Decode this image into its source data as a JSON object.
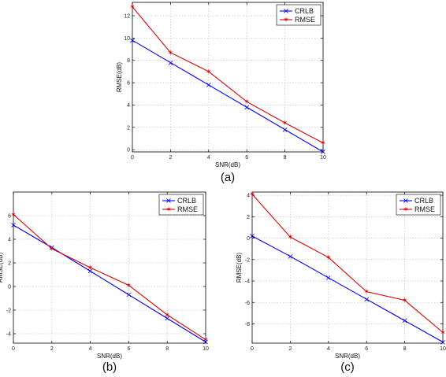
{
  "chart_data": [
    {
      "type": "line",
      "caption": "(a)",
      "xlabel": "SNR(dB)",
      "ylabel": "RMSE(dB)",
      "xlim": [
        0,
        10
      ],
      "ylim": [
        -0.2,
        13.2
      ],
      "xticks": [
        0,
        2,
        4,
        6,
        8,
        10
      ],
      "yticks": [
        0,
        2,
        4,
        6,
        8,
        10,
        12
      ],
      "grid": true,
      "legend_position": "top-right",
      "x": [
        0,
        2,
        4,
        6,
        8,
        10
      ],
      "series": [
        {
          "name": "CRLB",
          "color": "#0000ff",
          "marker": "x",
          "values": [
            9.8,
            7.8,
            5.8,
            3.8,
            1.8,
            -0.2
          ]
        },
        {
          "name": "RMSE",
          "color": "#e00000",
          "marker": "*",
          "values": [
            12.8,
            8.7,
            7.0,
            4.3,
            2.4,
            0.6
          ]
        }
      ]
    },
    {
      "type": "line",
      "caption": "(b)",
      "xlabel": "SNR(dB)",
      "ylabel": "RMSE(dB)",
      "xlim": [
        0,
        10
      ],
      "ylim": [
        -4.8,
        8
      ],
      "xticks": [
        0,
        2,
        4,
        6,
        8,
        10
      ],
      "yticks": [
        -4,
        -2,
        0,
        2,
        4,
        6
      ],
      "grid": true,
      "legend_position": "top-right",
      "x": [
        0,
        2,
        4,
        6,
        8,
        10
      ],
      "series": [
        {
          "name": "CRLB",
          "color": "#0000ff",
          "marker": "x",
          "values": [
            5.2,
            3.3,
            1.3,
            -0.7,
            -2.7,
            -4.7
          ]
        },
        {
          "name": "RMSE",
          "color": "#e00000",
          "marker": "*",
          "values": [
            6.1,
            3.2,
            1.6,
            0.1,
            -2.4,
            -4.5
          ]
        }
      ]
    },
    {
      "type": "line",
      "caption": "(c)",
      "xlabel": "SNR(dB)",
      "ylabel": "RMSE(dB)",
      "xlim": [
        0,
        10
      ],
      "ylim": [
        -9.8,
        4.3
      ],
      "xticks": [
        0,
        2,
        4,
        6,
        8,
        10
      ],
      "yticks": [
        -8,
        -6,
        -4,
        -2,
        0,
        2,
        4
      ],
      "grid": true,
      "legend_position": "top-right",
      "x": [
        0,
        2,
        4,
        6,
        8,
        10
      ],
      "series": [
        {
          "name": "CRLB",
          "color": "#0000ff",
          "marker": "x",
          "values": [
            0.2,
            -1.7,
            -3.7,
            -5.7,
            -7.7,
            -9.7
          ]
        },
        {
          "name": "RMSE",
          "color": "#e00000",
          "marker": "*",
          "values": [
            4.1,
            0.1,
            -1.8,
            -5.0,
            -5.8,
            -8.8
          ]
        }
      ]
    }
  ]
}
